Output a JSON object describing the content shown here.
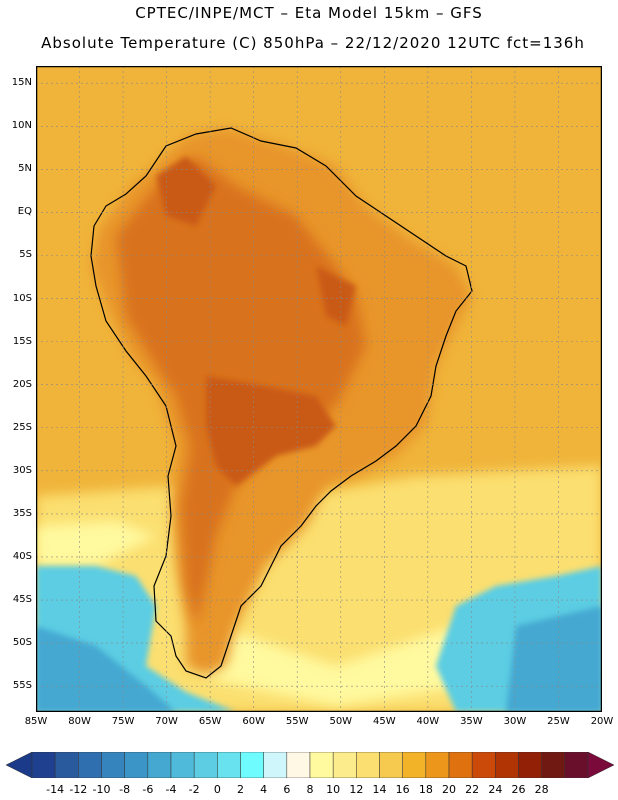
{
  "header": {
    "line1": "CPTEC/INPE/MCT –  Eta Model 15km – GFS",
    "line2": "Absolute Temperature (C) 850hPa – 22/12/2020 12UTC fct=136h"
  },
  "map": {
    "projection": "lat-lon",
    "lon_range": [
      -85,
      -20
    ],
    "lat_range": [
      -58,
      17
    ],
    "lat_labels": [
      {
        "value": 15,
        "text": "15N"
      },
      {
        "value": 10,
        "text": "10N"
      },
      {
        "value": 5,
        "text": "5N"
      },
      {
        "value": 0,
        "text": "EQ"
      },
      {
        "value": -5,
        "text": "5S"
      },
      {
        "value": -10,
        "text": "10S"
      },
      {
        "value": -15,
        "text": "15S"
      },
      {
        "value": -20,
        "text": "20S"
      },
      {
        "value": -25,
        "text": "25S"
      },
      {
        "value": -30,
        "text": "30S"
      },
      {
        "value": -35,
        "text": "35S"
      },
      {
        "value": -40,
        "text": "40S"
      },
      {
        "value": -45,
        "text": "45S"
      },
      {
        "value": -50,
        "text": "50S"
      },
      {
        "value": -55,
        "text": "55S"
      }
    ],
    "lon_labels": [
      {
        "value": -85,
        "text": "85W"
      },
      {
        "value": -80,
        "text": "80W"
      },
      {
        "value": -75,
        "text": "75W"
      },
      {
        "value": -70,
        "text": "70W"
      },
      {
        "value": -65,
        "text": "65W"
      },
      {
        "value": -60,
        "text": "60W"
      },
      {
        "value": -55,
        "text": "55W"
      },
      {
        "value": -50,
        "text": "50W"
      },
      {
        "value": -45,
        "text": "45W"
      },
      {
        "value": -40,
        "text": "40W"
      },
      {
        "value": -35,
        "text": "35W"
      },
      {
        "value": -30,
        "text": "30W"
      },
      {
        "value": -25,
        "text": "25W"
      },
      {
        "value": -20,
        "text": "20W"
      }
    ]
  },
  "colorbar": {
    "labels": [
      "-14",
      "-12",
      "-10",
      "-8",
      "-6",
      "-4",
      "-2",
      "0",
      "2",
      "4",
      "6",
      "8",
      "10",
      "12",
      "14",
      "16",
      "18",
      "20",
      "22",
      "24",
      "26",
      "28"
    ],
    "colors": [
      "#1f3f8f",
      "#2a5a9e",
      "#2f6faf",
      "#3584bd",
      "#3b95c6",
      "#45a8d1",
      "#4fbad9",
      "#5ccde3",
      "#67e2ee",
      "#6ffcff",
      "#cff6fb",
      "#fff8e4",
      "#fff99f",
      "#fdec8c",
      "#fbdf70",
      "#f5ca4f",
      "#f2b328",
      "#ec961c",
      "#e0710f",
      "#cc4a09",
      "#b13405",
      "#912006",
      "#701812",
      "#6a0f2b"
    ],
    "under_color": "#1b3a8a",
    "over_color": "#7a0a3a"
  },
  "legend_fill": {
    "ocean_tropical": "#f0b43a",
    "land_warm": "#e8952a",
    "land_hot": "#d9721e",
    "land_hottest": "#c95a14",
    "south_cold": "#5ccde3",
    "south_very_cold": "#45a8d1",
    "mid_light": "#fbdf70",
    "pale": "#fff99f",
    "coast": "#000000"
  }
}
